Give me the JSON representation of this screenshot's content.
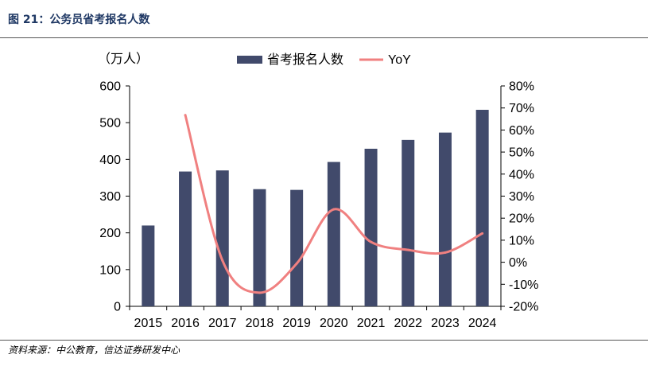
{
  "figure_title": "图 21：公务员省考报名人数",
  "source_note": "资料来源：中公教育，信达证券研发中心",
  "colors": {
    "bar": "#414a6b",
    "line": "#f08080",
    "title": "#1f3864"
  },
  "chart_data": {
    "type": "bar",
    "unit_label": "（万人）",
    "categories": [
      "2015",
      "2016",
      "2017",
      "2018",
      "2019",
      "2020",
      "2021",
      "2022",
      "2023",
      "2024"
    ],
    "series": [
      {
        "name": "省考报名人数",
        "type": "bar",
        "axis": "left",
        "values": [
          220,
          367,
          370,
          319,
          317,
          393,
          429,
          453,
          473,
          535
        ]
      },
      {
        "name": "YoY",
        "type": "line",
        "axis": "right",
        "values": [
          null,
          0.668,
          0.008,
          -0.138,
          -0.006,
          0.24,
          0.092,
          0.056,
          0.044,
          0.131
        ]
      }
    ],
    "y_left": {
      "min": 0,
      "max": 600,
      "ticks": [
        "0",
        "100",
        "200",
        "300",
        "400",
        "500",
        "600"
      ]
    },
    "y_right": {
      "min": -0.2,
      "max": 0.8,
      "ticks": [
        "-20%",
        "-10%",
        "0%",
        "10%",
        "20%",
        "30%",
        "40%",
        "50%",
        "60%",
        "70%",
        "80%"
      ]
    },
    "legend_position": "top-center",
    "grid": false
  }
}
